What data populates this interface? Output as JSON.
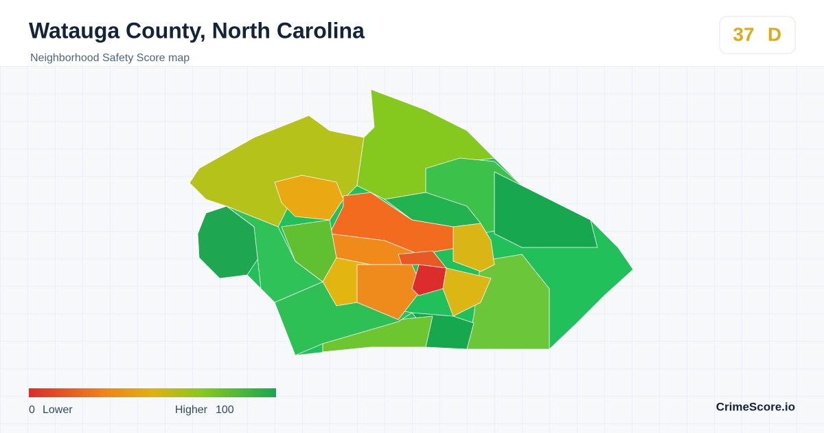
{
  "header": {
    "title": "Watauga County, North Carolina",
    "subtitle": "Neighborhood Safety Score map"
  },
  "score": {
    "value": 37,
    "grade": "D"
  },
  "legend": {
    "min": 0,
    "min_label": "Lower",
    "max_label": "Higher",
    "max": 100
  },
  "brand": "CrimeScore.io"
}
